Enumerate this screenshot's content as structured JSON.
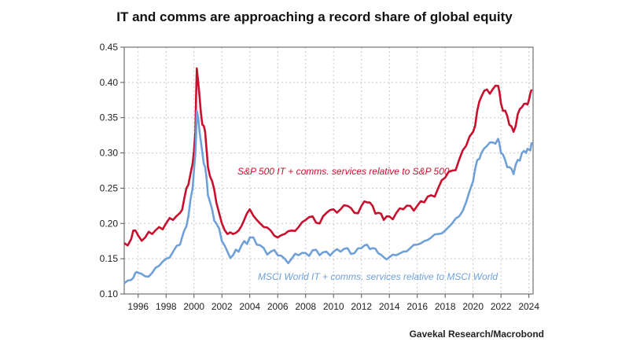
{
  "chart_data": {
    "type": "line",
    "title": "IT and comms are approaching a record share of global equity",
    "source": "Gavekal Research/Macrobond",
    "xlim": [
      1995.0,
      2024.3
    ],
    "ylim": [
      0.1,
      0.45
    ],
    "yticks": [
      0.1,
      0.15,
      0.2,
      0.25,
      0.3,
      0.35,
      0.4,
      0.45
    ],
    "ytick_labels": [
      "0.10",
      "0.15",
      "0.20",
      "0.25",
      "0.30",
      "0.35",
      "0.40",
      "0.45"
    ],
    "xticks": [
      1996,
      1998,
      2000,
      2002,
      2004,
      2006,
      2008,
      2010,
      2012,
      2014,
      2016,
      2018,
      2020,
      2022,
      2024
    ],
    "xtick_labels": [
      "1996",
      "1998",
      "2000",
      "2002",
      "2004",
      "2006",
      "2008",
      "2010",
      "2012",
      "2014",
      "2016",
      "2018",
      "2020",
      "2022",
      "2024"
    ],
    "grid": true,
    "series": [
      {
        "name": "S&P 500 IT + comms. services relative to S&P 500",
        "color": "#c8102e",
        "x": [
          1995.0,
          1995.5,
          1995.8,
          1996.0,
          1996.5,
          1997.0,
          1997.5,
          1998.0,
          1998.5,
          1999.0,
          1999.3,
          1999.6,
          1999.9,
          2000.1,
          2000.2,
          2000.4,
          2000.6,
          2000.8,
          2001.0,
          2001.3,
          2001.6,
          2002.0,
          2002.4,
          2002.8,
          2003.2,
          2003.6,
          2004.0,
          2004.5,
          2005.0,
          2005.5,
          2006.0,
          2006.5,
          2007.0,
          2007.5,
          2008.0,
          2008.5,
          2009.0,
          2009.5,
          2010.0,
          2010.5,
          2011.0,
          2011.5,
          2012.0,
          2012.4,
          2012.8,
          2013.2,
          2013.6,
          2014.0,
          2014.5,
          2015.0,
          2015.5,
          2016.0,
          2016.5,
          2017.0,
          2017.5,
          2018.0,
          2018.5,
          2019.0,
          2019.5,
          2020.0,
          2020.3,
          2020.6,
          2021.0,
          2021.4,
          2021.8,
          2022.0,
          2022.3,
          2022.6,
          2022.9,
          2023.2,
          2023.5,
          2023.8,
          2024.0,
          2024.2
        ],
        "y": [
          0.172,
          0.178,
          0.19,
          0.183,
          0.18,
          0.185,
          0.195,
          0.2,
          0.205,
          0.215,
          0.235,
          0.255,
          0.285,
          0.33,
          0.42,
          0.38,
          0.34,
          0.33,
          0.28,
          0.26,
          0.23,
          0.2,
          0.185,
          0.185,
          0.19,
          0.205,
          0.22,
          0.205,
          0.195,
          0.19,
          0.18,
          0.185,
          0.19,
          0.195,
          0.205,
          0.21,
          0.2,
          0.215,
          0.22,
          0.22,
          0.225,
          0.215,
          0.225,
          0.23,
          0.225,
          0.215,
          0.205,
          0.21,
          0.215,
          0.22,
          0.225,
          0.225,
          0.23,
          0.24,
          0.25,
          0.265,
          0.275,
          0.29,
          0.31,
          0.33,
          0.36,
          0.38,
          0.39,
          0.39,
          0.395,
          0.37,
          0.36,
          0.34,
          0.33,
          0.355,
          0.365,
          0.37,
          0.375,
          0.39
        ]
      },
      {
        "name": "MSCI World IT + comms. services relative to MSCI World",
        "color": "#6fa0d8",
        "x": [
          1995.0,
          1995.5,
          1995.8,
          1996.0,
          1996.5,
          1997.0,
          1997.5,
          1998.0,
          1998.5,
          1999.0,
          1999.3,
          1999.6,
          1999.9,
          2000.1,
          2000.2,
          2000.4,
          2000.6,
          2000.8,
          2001.0,
          2001.3,
          2001.6,
          2002.0,
          2002.4,
          2002.8,
          2003.2,
          2003.6,
          2004.0,
          2004.5,
          2005.0,
          2005.5,
          2006.0,
          2006.5,
          2007.0,
          2007.5,
          2008.0,
          2008.5,
          2009.0,
          2009.5,
          2010.0,
          2010.5,
          2011.0,
          2011.5,
          2012.0,
          2012.4,
          2012.8,
          2013.2,
          2013.6,
          2014.0,
          2014.5,
          2015.0,
          2015.5,
          2016.0,
          2016.5,
          2017.0,
          2017.5,
          2018.0,
          2018.5,
          2019.0,
          2019.5,
          2020.0,
          2020.3,
          2020.6,
          2021.0,
          2021.4,
          2021.8,
          2022.0,
          2022.3,
          2022.6,
          2022.9,
          2023.2,
          2023.5,
          2023.8,
          2024.0,
          2024.2
        ],
        "y": [
          0.115,
          0.12,
          0.13,
          0.13,
          0.125,
          0.13,
          0.14,
          0.15,
          0.16,
          0.17,
          0.19,
          0.21,
          0.25,
          0.3,
          0.36,
          0.33,
          0.3,
          0.28,
          0.24,
          0.22,
          0.2,
          0.175,
          0.16,
          0.155,
          0.16,
          0.175,
          0.18,
          0.17,
          0.165,
          0.16,
          0.155,
          0.15,
          0.15,
          0.155,
          0.158,
          0.162,
          0.155,
          0.16,
          0.16,
          0.16,
          0.165,
          0.158,
          0.165,
          0.17,
          0.165,
          0.158,
          0.152,
          0.152,
          0.155,
          0.16,
          0.165,
          0.17,
          0.175,
          0.18,
          0.185,
          0.19,
          0.2,
          0.21,
          0.23,
          0.26,
          0.29,
          0.3,
          0.31,
          0.315,
          0.32,
          0.3,
          0.29,
          0.28,
          0.27,
          0.29,
          0.3,
          0.3,
          0.305,
          0.315
        ]
      }
    ],
    "annotations": [
      "S&P 500 IT + comms. services relative to S&P 500",
      "MSCI World IT + comms. services relative to MSCI World"
    ]
  }
}
